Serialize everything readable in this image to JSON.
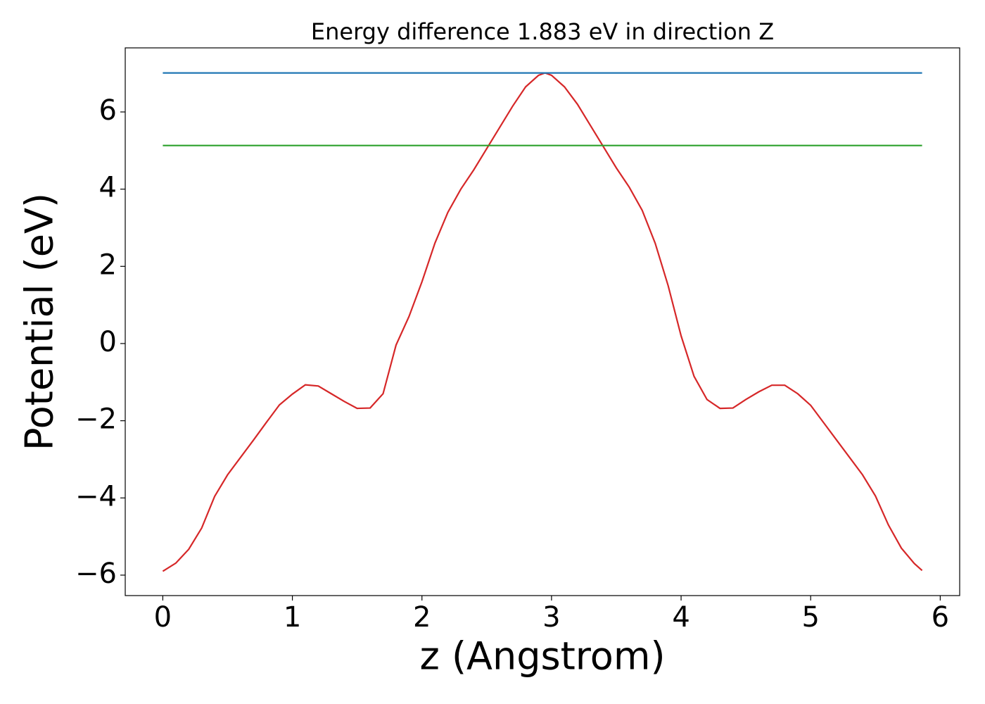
{
  "chart_data": {
    "type": "line",
    "title": "Energy difference 1.883 eV in direction Z",
    "xlabel": "z (Angstrom)",
    "ylabel": "Potential (eV)",
    "xlim": [
      -0.29,
      6.15
    ],
    "ylim": [
      -6.53,
      7.66
    ],
    "xticks": [
      0,
      1,
      2,
      3,
      4,
      5,
      6
    ],
    "yticks": [
      {
        "value": -6,
        "label": "−6"
      },
      {
        "value": -4,
        "label": "−4"
      },
      {
        "value": -2,
        "label": "−2"
      },
      0,
      2,
      4,
      6
    ],
    "grid": false,
    "series": [
      {
        "color": "#d62728",
        "x": [
          0,
          0.1,
          0.2,
          0.3,
          0.4,
          0.5,
          0.6,
          0.7,
          0.8,
          0.9,
          1.0,
          1.1,
          1.2,
          1.3,
          1.4,
          1.5,
          1.6,
          1.7,
          1.8,
          1.9,
          2.0,
          2.1,
          2.2,
          2.3,
          2.4,
          2.5,
          2.6,
          2.7,
          2.8,
          2.9,
          2.95,
          3.0,
          3.1,
          3.2,
          3.3,
          3.4,
          3.5,
          3.6,
          3.7,
          3.8,
          3.9,
          4.0,
          4.1,
          4.2,
          4.3,
          4.4,
          4.5,
          4.6,
          4.7,
          4.8,
          4.9,
          5.0,
          5.1,
          5.2,
          5.3,
          5.4,
          5.5,
          5.6,
          5.7,
          5.8,
          5.86
        ],
        "values": [
          -5.9,
          -5.69,
          -5.33,
          -4.78,
          -3.96,
          -3.4,
          -2.95,
          -2.5,
          -2.04,
          -1.59,
          -1.31,
          -1.07,
          -1.1,
          -1.3,
          -1.5,
          -1.68,
          -1.67,
          -1.3,
          -0.04,
          0.7,
          1.6,
          2.6,
          3.4,
          4.0,
          4.5,
          5.05,
          5.6,
          6.15,
          6.65,
          6.95,
          7.01,
          6.95,
          6.65,
          6.2,
          5.65,
          5.1,
          4.55,
          4.05,
          3.45,
          2.6,
          1.5,
          0.2,
          -0.85,
          -1.45,
          -1.68,
          -1.67,
          -1.45,
          -1.25,
          -1.08,
          -1.08,
          -1.3,
          -1.6,
          -2.05,
          -2.5,
          -2.95,
          -3.4,
          -3.95,
          -4.7,
          -5.3,
          -5.7,
          -5.88
        ]
      },
      {
        "color": "#1f77b4",
        "x": [
          0,
          5.86
        ],
        "values": [
          7.01,
          7.01
        ]
      },
      {
        "color": "#2ca02c",
        "x": [
          0,
          5.86
        ],
        "values": [
          5.13,
          5.13
        ]
      }
    ]
  }
}
